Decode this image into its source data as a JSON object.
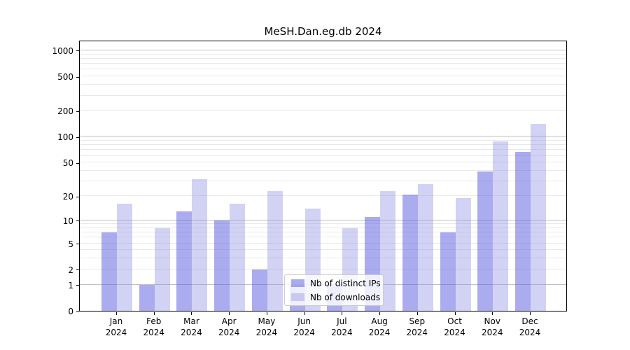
{
  "chart_data": {
    "type": "bar",
    "title": "MeSH.Dan.eg.db 2024",
    "categories": [
      "Jan 2024",
      "Feb 2024",
      "Mar 2024",
      "Apr 2024",
      "May 2024",
      "Jun 2024",
      "Jul 2024",
      "Aug 2024",
      "Sep 2024",
      "Oct 2024",
      "Nov 2024",
      "Dec 2024"
    ],
    "x_months": [
      "Jan",
      "Feb",
      "Mar",
      "Apr",
      "May",
      "Jun",
      "Jul",
      "Aug",
      "Sep",
      "Oct",
      "Nov",
      "Dec"
    ],
    "x_year": "2024",
    "series": [
      {
        "name": "Nb of distinct IPs",
        "color": "#a6a6ef",
        "fill": "rgba(93,93,224,0.52)",
        "values": [
          7,
          1,
          13,
          10,
          2,
          1,
          1,
          11,
          21,
          7,
          39,
          67
        ]
      },
      {
        "name": "Nb of downloads",
        "color": "#d3d3f5",
        "fill": "rgba(148,148,232,0.42)",
        "values": [
          16,
          8,
          32,
          16,
          23,
          14,
          8,
          23,
          28,
          19,
          89,
          141
        ]
      }
    ],
    "yscale": "log1p",
    "ylabel": "",
    "xlabel": "",
    "yticks": [
      0,
      1,
      2,
      5,
      10,
      20,
      50,
      100,
      200,
      500,
      1000
    ],
    "major_gridline_values": [
      1,
      10,
      100,
      1000
    ],
    "minor_gridline_values": [
      2,
      3,
      4,
      5,
      6,
      7,
      8,
      9,
      20,
      30,
      40,
      50,
      60,
      70,
      80,
      90,
      200,
      300,
      400,
      500,
      600,
      700,
      800,
      900
    ],
    "ylim": [
      0,
      1300
    ],
    "grid": "horizontal",
    "legend": {
      "position": "inside-bottom-center",
      "items": [
        "Nb of distinct IPs",
        "Nb of downloads"
      ]
    },
    "colors": {
      "spine": "#000000",
      "major_grid": "#c0c0c0",
      "minor_grid": "#e9e9e9",
      "text": "#000000",
      "legend_border": "#cccccc",
      "background": "#ffffff"
    }
  }
}
